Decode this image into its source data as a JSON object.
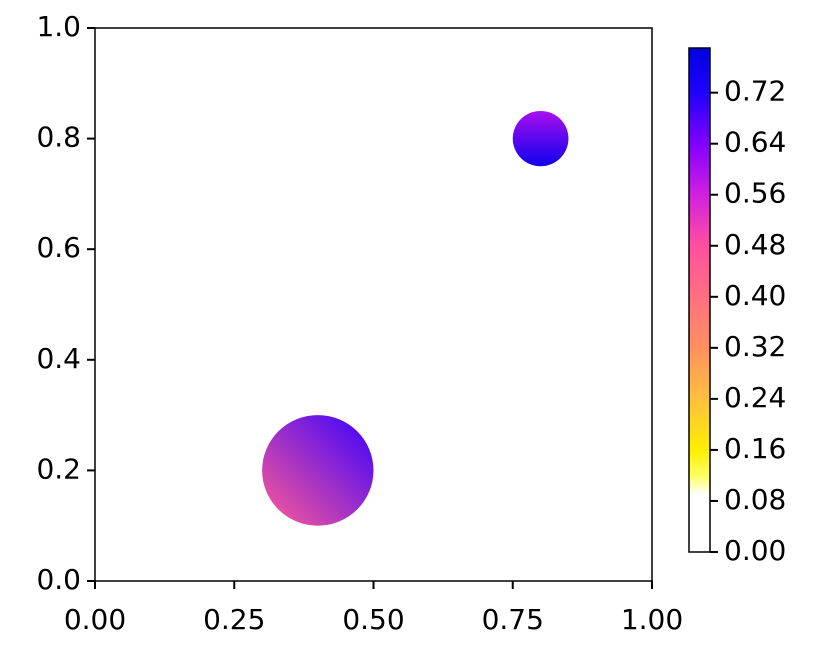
{
  "chart_data": {
    "type": "disks",
    "x": [
      0.4,
      0.8
    ],
    "y": [
      0.2,
      0.8
    ],
    "r": [
      0.1,
      0.05
    ],
    "color_range": [
      [
        0.45,
        0.7
      ],
      [
        0.6,
        0.76
      ]
    ],
    "xlim": [
      0,
      1
    ],
    "ylim": [
      0,
      1
    ],
    "xticks": [
      {
        "value": 0,
        "label": "0.00"
      },
      {
        "value": 0.25,
        "label": "0.25"
      },
      {
        "value": 0.5,
        "label": "0.50"
      },
      {
        "value": 0.75,
        "label": "0.75"
      },
      {
        "value": 1,
        "label": "1.00"
      }
    ],
    "yticks": [
      {
        "value": 0,
        "label": "0.0"
      },
      0.2,
      0.4,
      0.6,
      0.8,
      {
        "value": 1,
        "label": "1.0"
      }
    ],
    "clim": [
      0,
      0.79
    ],
    "cticks": [
      {
        "value": 0,
        "label": "0.00"
      },
      0.08,
      0.16,
      0.24,
      0.32,
      {
        "value": 0.4,
        "label": "0.40"
      },
      0.48,
      0.56,
      0.64,
      0.72
    ],
    "colormap": [
      [
        0,
        "#ffffff"
      ],
      [
        0.09,
        "#ffffff"
      ],
      [
        0.12,
        "#ffff60"
      ],
      [
        0.16,
        "#ffee00"
      ],
      [
        0.24,
        "#ffc040"
      ],
      [
        0.32,
        "#ff9060"
      ],
      [
        0.4,
        "#ff7080"
      ],
      [
        0.48,
        "#ff50a0"
      ],
      [
        0.56,
        "#d020e0"
      ],
      [
        0.64,
        "#8000ff"
      ],
      [
        0.72,
        "#2000ff"
      ],
      [
        0.79,
        "#0000e0"
      ]
    ]
  }
}
